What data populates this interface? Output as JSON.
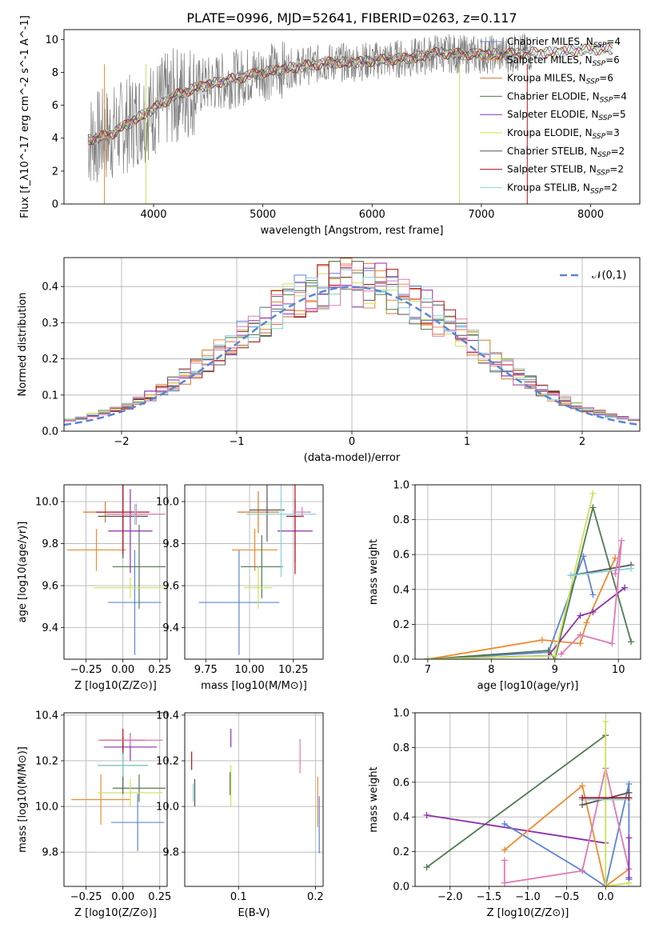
{
  "figure_title": "PLATE=0996, MJD=52641, FIBERID=0263, z=0.117",
  "colors": {
    "Chabrier MILES": "#5b84d6",
    "Salpeter MILES": "#f08a2f",
    "Kroupa MILES": "#d67a2a",
    "Chabrier ELODIE": "#4f7a51",
    "Salpeter ELODIE": "#8e2fae",
    "Kroupa ELODIE": "#cbe25a",
    "Chabrier STELIB": "#555555",
    "Salpeter STELIB": "#b0121c",
    "Kroupa STELIB": "#86d3de",
    "data": "#808080",
    "pink": "#e078b4"
  },
  "chart_data": [
    {
      "type": "line",
      "panel": "spectrum",
      "xlabel": "wavelength [Angstrom, rest frame]",
      "ylabel": "Flux [f_λ10^-17 erg cm^-2 s^-1 A^-1]",
      "xlim": [
        3180,
        8450
      ],
      "ylim": [
        0,
        10.6
      ],
      "xticks": [
        "4000",
        "5000",
        "6000",
        "7000",
        "8000"
      ],
      "yticks": [
        "0",
        "2",
        "4",
        "6",
        "8",
        "10"
      ],
      "legend_position": "right",
      "legend": [
        {
          "name": "Chabrier MILES",
          "sub": "SSP",
          "n": "4"
        },
        {
          "name": "Salpeter MILES",
          "sub": "SSP",
          "n": "6"
        },
        {
          "name": "Kroupa MILES",
          "sub": "SSP",
          "n": "6"
        },
        {
          "name": "Chabrier ELODIE",
          "sub": "SSP",
          "n": "4"
        },
        {
          "name": "Salpeter ELODIE",
          "sub": "SSP",
          "n": "5"
        },
        {
          "name": "Kroupa ELODIE",
          "sub": "SSP",
          "n": "3"
        },
        {
          "name": "Chabrier STELIB",
          "sub": "SSP",
          "n": "2"
        },
        {
          "name": "Salpeter STELIB",
          "sub": "SSP",
          "n": "2"
        },
        {
          "name": "Kroupa STELIB",
          "sub": "SSP",
          "n": "2"
        }
      ],
      "continuum": {
        "x": [
          3400,
          3600,
          3800,
          4000,
          4200,
          4400,
          4600,
          4800,
          5000,
          5200,
          5400,
          5600,
          5800,
          6000,
          6200,
          6400,
          6600,
          6800,
          7000,
          7200,
          7400,
          7600,
          7800,
          8000,
          8200
        ],
        "y": [
          3.9,
          4.2,
          5.0,
          5.8,
          6.6,
          7.1,
          7.4,
          7.7,
          8.0,
          8.2,
          8.4,
          8.6,
          8.6,
          8.7,
          8.8,
          8.9,
          9.2,
          9.1,
          9.1,
          9.1,
          9.2,
          9.2,
          9.3,
          9.4,
          9.4
        ]
      }
    },
    {
      "type": "line",
      "panel": "residual_histogram",
      "xlabel": "(data-model)/error",
      "ylabel": "Normed distribution",
      "xlim": [
        -2.5,
        2.5
      ],
      "ylim": [
        0,
        0.48
      ],
      "xticks": [
        "−2",
        "−1",
        "0",
        "1",
        "2"
      ],
      "yticks": [
        "0.0",
        "0.1",
        "0.2",
        "0.3",
        "0.4"
      ],
      "legend": "𝒩(0,1)",
      "legend_position": "top-right",
      "grid": true,
      "curve": "gaussian_mean0_sigma1"
    },
    {
      "type": "scatter",
      "panel": "age_vs_Z",
      "xlabel": "Z [log10(Z/Z⊙)]",
      "ylabel": "age  [log10(age/yr)]",
      "xlim": [
        -0.4,
        0.3
      ],
      "ylim": [
        9.25,
        10.08
      ],
      "xticks": [
        "−0.25",
        "0.00",
        "0.25"
      ],
      "yticks": [
        "9.4",
        "9.6",
        "9.8",
        "10.0"
      ],
      "grid": true,
      "points": [
        {
          "s": "Chabrier MILES",
          "x": 0.08,
          "y": 9.52,
          "ex": 0.18,
          "ey": 0.5
        },
        {
          "s": "Salpeter MILES",
          "x": -0.18,
          "y": 9.77,
          "ex": 0.2,
          "ey": 0.2
        },
        {
          "s": "Kroupa MILES",
          "x": -0.12,
          "y": 9.95,
          "ex": 0.15,
          "ey": 0.1
        },
        {
          "s": "Chabrier ELODIE",
          "x": 0.11,
          "y": 9.69,
          "ex": 0.18,
          "ey": 0.4
        },
        {
          "s": "Salpeter ELODIE",
          "x": 0.05,
          "y": 9.86,
          "ex": 0.15,
          "ey": 0.4
        },
        {
          "s": "Kroupa ELODIE",
          "x": 0.05,
          "y": 9.59,
          "ex": 0.25,
          "ey": 0.1
        },
        {
          "s": "Chabrier STELIB",
          "x": 0.0,
          "y": 9.93,
          "ex": 0.17,
          "ey": 0.4
        },
        {
          "s": "Salpeter STELIB",
          "x": 0.0,
          "y": 9.95,
          "ex": 0.18,
          "ey": 0.4
        },
        {
          "s": "Kroupa STELIB",
          "x": 0.08,
          "y": 9.94,
          "ex": 0.2,
          "ey": 0.1
        },
        {
          "s": "pink",
          "x": 0.09,
          "y": 9.94,
          "ex": 0.2,
          "ey": 0.1
        }
      ]
    },
    {
      "type": "scatter",
      "panel": "age_vs_mass",
      "xlabel": "mass [log10(M/M⊙)]",
      "ylabel": "",
      "xlim": [
        9.63,
        10.42
      ],
      "ylim": [
        9.25,
        10.08
      ],
      "xticks": [
        "9.75",
        "10.00",
        "10.25"
      ],
      "yticks": [
        "9.4",
        "9.6",
        "9.8",
        "10.0"
      ],
      "grid": true,
      "points": [
        {
          "s": "Chabrier MILES",
          "x": 9.94,
          "y": 9.52,
          "ex": 0.23,
          "ey": 0.5
        },
        {
          "s": "Salpeter MILES",
          "x": 10.03,
          "y": 9.77,
          "ex": 0.13,
          "ey": 0.2
        },
        {
          "s": "Kroupa MILES",
          "x": 10.05,
          "y": 9.95,
          "ex": 0.12,
          "ey": 0.2
        },
        {
          "s": "Chabrier ELODIE",
          "x": 10.07,
          "y": 9.69,
          "ex": 0.12,
          "ey": 0.3
        },
        {
          "s": "Salpeter ELODIE",
          "x": 10.26,
          "y": 9.86,
          "ex": 0.1,
          "ey": 0.3
        },
        {
          "s": "Kroupa ELODIE",
          "x": 10.05,
          "y": 9.59,
          "ex": 0.08,
          "ey": 0.2
        },
        {
          "s": "Chabrier STELIB",
          "x": 10.1,
          "y": 9.96,
          "ex": 0.1,
          "ey": 0.3
        },
        {
          "s": "Salpeter STELIB",
          "x": 10.26,
          "y": 9.93,
          "ex": 0.05,
          "ey": 0.55
        },
        {
          "s": "Kroupa STELIB",
          "x": 10.18,
          "y": 9.94,
          "ex": 0.2,
          "ey": 0.6
        },
        {
          "s": "pink",
          "x": 10.3,
          "y": 9.95,
          "ex": 0.05,
          "ey": 0.05
        }
      ]
    },
    {
      "type": "line",
      "panel": "mass_weight_vs_age",
      "xlabel": "age  [log10(age/yr)]",
      "ylabel": "mass weight",
      "xlim": [
        6.8,
        10.35
      ],
      "ylim": [
        0,
        1.0
      ],
      "xticks": [
        "7",
        "8",
        "9",
        "10"
      ],
      "yticks": [
        "0.0",
        "0.2",
        "0.4",
        "0.6",
        "0.8",
        "1.0"
      ],
      "grid": true,
      "series": [
        {
          "s": "Chabrier MILES",
          "x": [
            7.0,
            8.9,
            9.45,
            9.6
          ],
          "y": [
            0.0,
            0.04,
            0.59,
            0.37
          ]
        },
        {
          "s": "Salpeter MILES",
          "x": [
            7.0,
            8.8,
            9.4,
            9.5,
            9.95
          ],
          "y": [
            0.0,
            0.11,
            0.09,
            0.21,
            0.58
          ]
        },
        {
          "s": "Chabrier ELODIE",
          "x": [
            7.0,
            8.9,
            9.0,
            9.6,
            10.2
          ],
          "y": [
            0.0,
            0.05,
            0.0,
            0.87,
            0.1
          ]
        },
        {
          "s": "Salpeter ELODIE",
          "x": [
            7.0,
            8.9,
            9.4,
            9.6,
            10.1
          ],
          "y": [
            0.0,
            0.02,
            0.25,
            0.27,
            0.41
          ]
        },
        {
          "s": "Kroupa ELODIE",
          "x": [
            7.0,
            9.0,
            9.6
          ],
          "y": [
            0.0,
            0.02,
            0.95
          ]
        },
        {
          "s": "Chabrier STELIB",
          "x": [
            9.25,
            10.2
          ],
          "y": [
            0.48,
            0.54
          ]
        },
        {
          "s": "Kroupa STELIB",
          "x": [
            9.25,
            10.2
          ],
          "y": [
            0.48,
            0.52
          ]
        },
        {
          "s": "pink",
          "x": [
            9.1,
            9.4,
            9.9,
            10.05,
            9.95
          ],
          "y": [
            0.03,
            0.14,
            0.09,
            0.68,
            0.49
          ]
        }
      ]
    },
    {
      "type": "scatter",
      "panel": "mass_vs_Z",
      "xlabel": "Z [log10(Z/Z⊙)]",
      "ylabel": "mass [log10(M/M⊙)]",
      "xlim": [
        -0.4,
        0.3
      ],
      "ylim": [
        9.65,
        10.41
      ],
      "xticks": [
        "−0.25",
        "0.00",
        "0.25"
      ],
      "yticks": [
        "9.8",
        "10.0",
        "10.2",
        "10.4"
      ],
      "grid": true,
      "points": [
        {
          "s": "Chabrier MILES",
          "x": 0.1,
          "y": 9.93,
          "ex": 0.18,
          "ey": 0.25
        },
        {
          "s": "Salpeter MILES",
          "x": -0.15,
          "y": 10.03,
          "ex": 0.2,
          "ey": 0.22
        },
        {
          "s": "Chabrier ELODIE",
          "x": 0.11,
          "y": 10.08,
          "ex": 0.18,
          "ey": 0.12
        },
        {
          "s": "Salpeter ELODIE",
          "x": 0.05,
          "y": 10.26,
          "ex": 0.18,
          "ey": 0.12
        },
        {
          "s": "Kroupa ELODIE",
          "x": 0.05,
          "y": 10.06,
          "ex": 0.22,
          "ey": 0.12
        },
        {
          "s": "Chabrier STELIB",
          "x": 0.0,
          "y": 10.18,
          "ex": 0.17,
          "ey": 0.25
        },
        {
          "s": "Salpeter STELIB",
          "x": 0.0,
          "y": 10.29,
          "ex": 0.15,
          "ey": 0.1
        },
        {
          "s": "Kroupa STELIB",
          "x": 0.0,
          "y": 10.18,
          "ex": 0.17,
          "ey": 0.1
        },
        {
          "s": "pink",
          "x": 0.05,
          "y": 10.29,
          "ex": 0.22,
          "ey": 0.05
        }
      ]
    },
    {
      "type": "scatter",
      "panel": "mass_vs_EBV",
      "xlabel": "E(B-V)",
      "ylabel": "",
      "xlim": [
        0.03,
        0.21
      ],
      "ylim": [
        9.65,
        10.41
      ],
      "xticks": [
        "0.1",
        "0.2"
      ],
      "yticks": [
        "9.8",
        "10.0",
        "10.2",
        "10.4"
      ],
      "grid": true,
      "points": [
        {
          "s": "Salpeter STELIB",
          "x": 0.039,
          "y": 10.2,
          "ey": 0.08
        },
        {
          "s": "Chabrier STELIB",
          "x": 0.043,
          "y": 10.06,
          "ey": 0.12
        },
        {
          "s": "Kroupa STELIB",
          "x": 0.041,
          "y": 10.06,
          "ey": 0.08
        },
        {
          "s": "Salpeter ELODIE",
          "x": 0.09,
          "y": 10.3,
          "ey": 0.08
        },
        {
          "s": "Kroupa ELODIE",
          "x": 0.09,
          "y": 10.09,
          "ey": 0.18
        },
        {
          "s": "Chabrier ELODIE",
          "x": 0.089,
          "y": 10.1,
          "ey": 0.1
        },
        {
          "s": "pink",
          "x": 0.18,
          "y": 10.22,
          "ey": 0.15
        },
        {
          "s": "Salpeter MILES",
          "x": 0.203,
          "y": 10.02,
          "ey": 0.22
        },
        {
          "s": "Chabrier MILES",
          "x": 0.205,
          "y": 9.92,
          "ey": 0.25
        }
      ]
    },
    {
      "type": "line",
      "panel": "mass_weight_vs_Z",
      "xlabel": "Z [log10(Z/Z⊙)]",
      "ylabel": "mass weight",
      "xlim": [
        -2.45,
        0.45
      ],
      "ylim": [
        0,
        1.0
      ],
      "xticks": [
        "−2.0",
        "−1.5",
        "−1.0",
        "−0.5",
        "0.0"
      ],
      "yticks": [
        "0.0",
        "0.2",
        "0.4",
        "0.6",
        "0.8",
        "1.0"
      ],
      "grid": true,
      "series": [
        {
          "s": "Chabrier ELODIE",
          "x": [
            -2.3,
            0.0
          ],
          "y": [
            0.11,
            0.87
          ]
        },
        {
          "s": "Salpeter ELODIE",
          "x": [
            -2.3,
            0.0
          ],
          "y": [
            0.41,
            0.25
          ]
        },
        {
          "s": "Chabrier MILES",
          "x": [
            -1.3,
            -0.3,
            0.0,
            0.3,
            0.3
          ],
          "y": [
            0.36,
            0.09,
            0.0,
            0.59,
            0.04
          ]
        },
        {
          "s": "Salpeter MILES",
          "x": [
            -1.3,
            -0.3,
            0.0,
            0.3
          ],
          "y": [
            0.21,
            0.58,
            0.0,
            0.1
          ]
        },
        {
          "s": "pink",
          "x": [
            -1.3,
            -1.3,
            -0.3,
            0.0,
            0.3
          ],
          "y": [
            0.15,
            0.02,
            0.09,
            0.68,
            0.1
          ]
        },
        {
          "s": "Kroupa ELODIE",
          "x": [
            0.0,
            0.0,
            0.3
          ],
          "y": [
            0.95,
            0.0,
            0.02
          ]
        },
        {
          "s": "Chabrier STELIB",
          "x": [
            -0.3,
            0.3
          ],
          "y": [
            0.47,
            0.54
          ]
        },
        {
          "s": "Kroupa STELIB",
          "x": [
            -0.3,
            0.3
          ],
          "y": [
            0.5,
            0.5
          ]
        },
        {
          "s": "Salpeter STELIB",
          "x": [
            -0.3,
            0.3
          ],
          "y": [
            0.51,
            0.51
          ]
        },
        {
          "s": "Salpeter ELODIE",
          "x": [
            0.3,
            0.3
          ],
          "y": [
            0.28,
            0.05
          ]
        }
      ]
    }
  ]
}
